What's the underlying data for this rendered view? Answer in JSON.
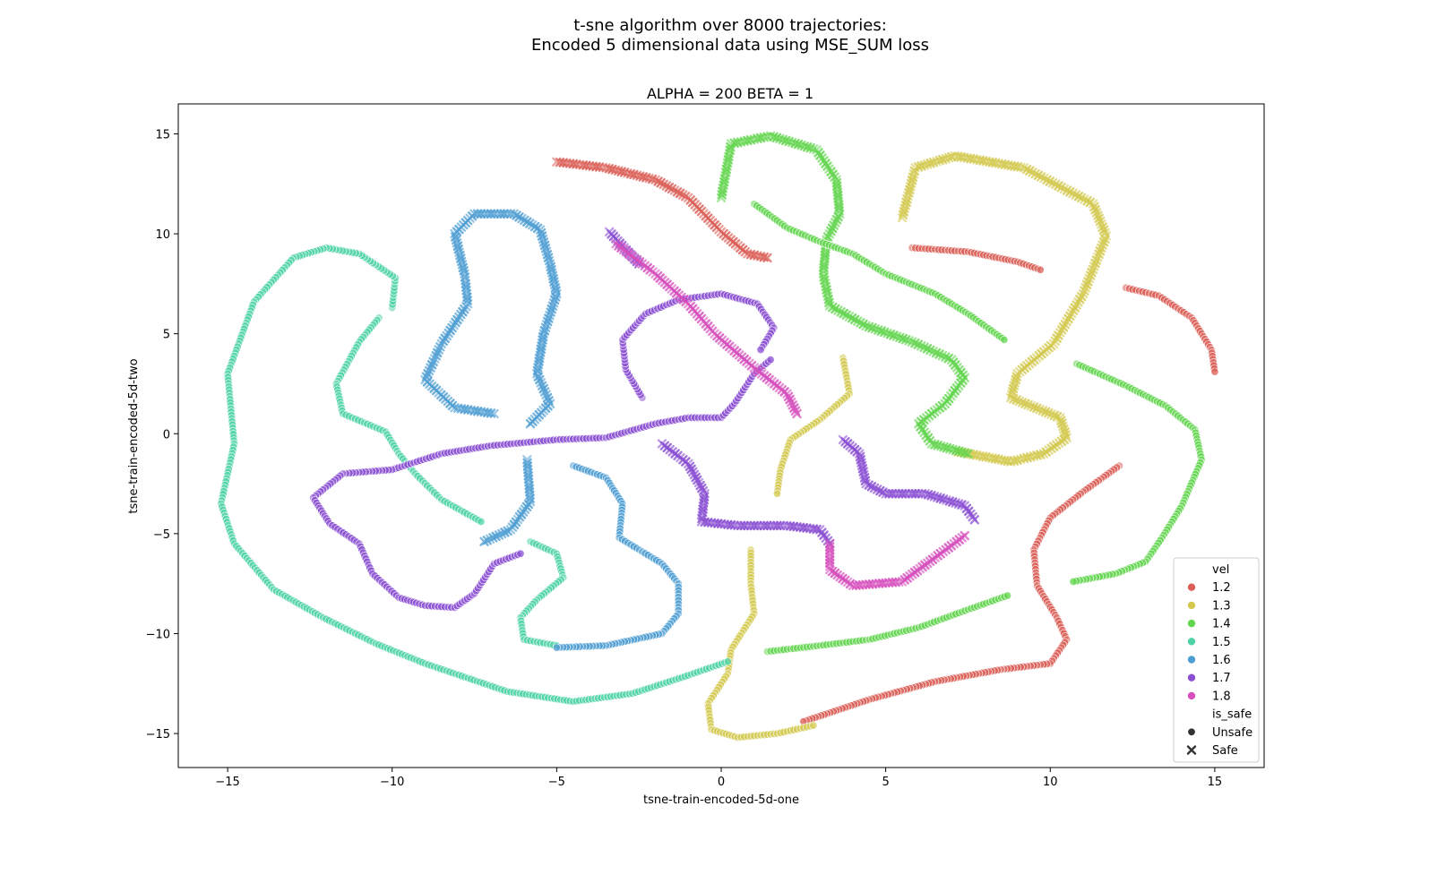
{
  "chart_data": {
    "type": "scatter",
    "suptitle_line1": "t-sne algorithm over 8000 trajectories:",
    "suptitle_line2": "Encoded 5 dimensional data using MSE_SUM loss",
    "title": "ALPHA = 200  BETA = 1",
    "xlabel": "tsne-train-encoded-5d-one",
    "ylabel": "tsne-train-encoded-5d-two",
    "xlim": [
      -16.5,
      16.5
    ],
    "ylim": [
      -16.7,
      16.5
    ],
    "xticks": [
      -15,
      -10,
      -5,
      0,
      5,
      10,
      15
    ],
    "yticks": [
      -15,
      -10,
      -5,
      0,
      5,
      10,
      15
    ],
    "grid": false,
    "legend_position": "bottom-right",
    "legend": {
      "hue_title": "vel",
      "hue_entries": [
        {
          "label": "1.2",
          "color": "#db5f57"
        },
        {
          "label": "1.3",
          "color": "#d3c94f"
        },
        {
          "label": "1.4",
          "color": "#63d54f"
        },
        {
          "label": "1.5",
          "color": "#4fd3a6"
        },
        {
          "label": "1.6",
          "color": "#4f9ed3"
        },
        {
          "label": "1.7",
          "color": "#8a4fd3"
        },
        {
          "label": "1.8",
          "color": "#d64fbd"
        }
      ],
      "style_title": "is_safe",
      "style_entries": [
        {
          "label": "Unsafe",
          "marker": "circle"
        },
        {
          "label": "Safe",
          "marker": "x"
        }
      ]
    },
    "series": [
      {
        "vel": "1.2",
        "color": "#db5f57",
        "marker": "x",
        "points": [
          [
            -5.0,
            13.6
          ],
          [
            -3.5,
            13.3
          ],
          [
            -2.0,
            12.7
          ],
          [
            -1.0,
            11.8
          ],
          [
            0.0,
            10.1
          ],
          [
            0.8,
            9.0
          ],
          [
            1.4,
            8.8
          ]
        ]
      },
      {
        "vel": "1.2",
        "color": "#db5f57",
        "marker": "circle",
        "points": [
          [
            5.8,
            9.3
          ],
          [
            7.5,
            9.1
          ],
          [
            9.0,
            8.6
          ],
          [
            9.7,
            8.2
          ]
        ]
      },
      {
        "vel": "1.2",
        "color": "#db5f57",
        "marker": "circle",
        "points": [
          [
            12.3,
            7.3
          ],
          [
            13.3,
            6.9
          ],
          [
            14.3,
            5.8
          ],
          [
            14.9,
            4.2
          ],
          [
            15.0,
            3.1
          ]
        ]
      },
      {
        "vel": "1.2",
        "color": "#db5f57",
        "marker": "circle",
        "points": [
          [
            12.1,
            -1.6
          ],
          [
            11.0,
            -2.9
          ],
          [
            10.0,
            -4.2
          ],
          [
            9.5,
            -5.8
          ],
          [
            9.6,
            -7.6
          ],
          [
            10.2,
            -9.2
          ],
          [
            10.5,
            -10.3
          ],
          [
            10.0,
            -11.5
          ],
          [
            8.5,
            -11.8
          ],
          [
            6.5,
            -12.4
          ],
          [
            4.5,
            -13.3
          ],
          [
            2.5,
            -14.4
          ]
        ]
      },
      {
        "vel": "1.3",
        "color": "#d3c94f",
        "marker": "x",
        "points": [
          [
            5.5,
            10.8
          ],
          [
            5.9,
            13.3
          ],
          [
            7.1,
            13.9
          ],
          [
            9.2,
            13.3
          ],
          [
            11.3,
            11.5
          ],
          [
            11.7,
            9.9
          ],
          [
            11.0,
            7.0
          ],
          [
            10.1,
            4.5
          ],
          [
            9.0,
            3.0
          ],
          [
            8.8,
            1.8
          ],
          [
            10.3,
            0.8
          ],
          [
            10.5,
            -0.2
          ],
          [
            9.8,
            -1.0
          ],
          [
            8.8,
            -1.4
          ],
          [
            7.2,
            -0.9
          ]
        ]
      },
      {
        "vel": "1.3",
        "color": "#d3c94f",
        "marker": "circle",
        "points": [
          [
            3.7,
            3.8
          ],
          [
            3.9,
            2.0
          ],
          [
            3.0,
            0.7
          ],
          [
            2.1,
            -0.3
          ],
          [
            1.8,
            -1.8
          ],
          [
            1.7,
            -3.0
          ]
        ]
      },
      {
        "vel": "1.3",
        "color": "#d3c94f",
        "marker": "circle",
        "points": [
          [
            0.9,
            -5.8
          ],
          [
            0.9,
            -7.5
          ],
          [
            1.0,
            -9.0
          ],
          [
            0.3,
            -10.8
          ],
          [
            0.2,
            -12.0
          ],
          [
            -0.4,
            -13.5
          ],
          [
            -0.3,
            -14.8
          ],
          [
            0.5,
            -15.2
          ],
          [
            1.7,
            -15.0
          ],
          [
            2.8,
            -14.6
          ]
        ]
      },
      {
        "vel": "1.4",
        "color": "#63d54f",
        "marker": "x",
        "points": [
          [
            0.0,
            11.8
          ],
          [
            0.3,
            14.5
          ],
          [
            1.5,
            14.9
          ],
          [
            2.9,
            14.2
          ],
          [
            3.5,
            12.7
          ],
          [
            3.6,
            11.0
          ],
          [
            3.2,
            9.7
          ],
          [
            3.1,
            8.0
          ],
          [
            3.3,
            6.4
          ],
          [
            4.4,
            5.4
          ],
          [
            5.8,
            4.6
          ],
          [
            7.0,
            3.7
          ],
          [
            7.4,
            2.8
          ],
          [
            6.8,
            1.5
          ],
          [
            6.0,
            0.5
          ],
          [
            6.4,
            -0.5
          ],
          [
            7.5,
            -1.0
          ]
        ]
      },
      {
        "vel": "1.4",
        "color": "#63d54f",
        "marker": "circle",
        "points": [
          [
            1.0,
            11.5
          ],
          [
            2.0,
            10.3
          ],
          [
            3.0,
            9.6
          ],
          [
            4.0,
            9.0
          ],
          [
            5.0,
            8.0
          ],
          [
            6.5,
            7.0
          ],
          [
            7.5,
            6.0
          ],
          [
            8.6,
            4.7
          ]
        ]
      },
      {
        "vel": "1.4",
        "color": "#63d54f",
        "marker": "circle",
        "points": [
          [
            10.8,
            3.5
          ],
          [
            12.3,
            2.4
          ],
          [
            13.5,
            1.4
          ],
          [
            14.4,
            0.2
          ],
          [
            14.6,
            -1.3
          ],
          [
            14.0,
            -3.6
          ],
          [
            13.4,
            -5.2
          ],
          [
            12.9,
            -6.4
          ],
          [
            12.0,
            -7.0
          ],
          [
            10.7,
            -7.4
          ]
        ]
      },
      {
        "vel": "1.4",
        "color": "#63d54f",
        "marker": "circle",
        "points": [
          [
            1.4,
            -10.9
          ],
          [
            3.0,
            -10.6
          ],
          [
            4.5,
            -10.3
          ],
          [
            6.0,
            -9.7
          ],
          [
            7.5,
            -8.8
          ],
          [
            8.7,
            -8.1
          ]
        ]
      },
      {
        "vel": "1.5",
        "color": "#4fd3a6",
        "marker": "circle",
        "points": [
          [
            -10.0,
            6.3
          ],
          [
            -9.9,
            7.8
          ],
          [
            -11.0,
            9.0
          ],
          [
            -12.0,
            9.3
          ],
          [
            -13.0,
            8.8
          ],
          [
            -14.2,
            6.6
          ],
          [
            -15.0,
            3.0
          ],
          [
            -14.8,
            -0.5
          ],
          [
            -15.2,
            -3.5
          ],
          [
            -14.8,
            -5.5
          ],
          [
            -13.6,
            -7.8
          ],
          [
            -12.1,
            -9.2
          ],
          [
            -10.5,
            -10.5
          ],
          [
            -9.0,
            -11.5
          ],
          [
            -6.5,
            -12.9
          ],
          [
            -4.5,
            -13.4
          ],
          [
            -2.7,
            -13.0
          ],
          [
            -1.2,
            -12.2
          ],
          [
            0.2,
            -11.4
          ]
        ]
      },
      {
        "vel": "1.5",
        "color": "#4fd3a6",
        "marker": "circle",
        "points": [
          [
            -10.4,
            5.8
          ],
          [
            -11.0,
            4.6
          ],
          [
            -11.7,
            2.5
          ],
          [
            -11.5,
            1.0
          ],
          [
            -10.2,
            0.1
          ],
          [
            -9.8,
            -1.0
          ],
          [
            -9.3,
            -2.0
          ],
          [
            -8.5,
            -3.3
          ],
          [
            -7.3,
            -4.4
          ]
        ]
      },
      {
        "vel": "1.5",
        "color": "#4fd3a6",
        "marker": "circle",
        "points": [
          [
            -5.8,
            -5.4
          ],
          [
            -5.0,
            -6.0
          ],
          [
            -4.8,
            -7.2
          ],
          [
            -5.6,
            -8.3
          ],
          [
            -6.1,
            -9.2
          ],
          [
            -6.0,
            -10.3
          ],
          [
            -5.0,
            -10.6
          ]
        ]
      },
      {
        "vel": "1.6",
        "color": "#4f9ed3",
        "marker": "x",
        "points": [
          [
            -6.9,
            1.0
          ],
          [
            -8.1,
            1.3
          ],
          [
            -9.0,
            2.7
          ],
          [
            -8.5,
            4.5
          ],
          [
            -7.7,
            6.5
          ],
          [
            -7.8,
            8.0
          ],
          [
            -8.1,
            10.0
          ],
          [
            -7.5,
            11.0
          ],
          [
            -6.3,
            11.0
          ],
          [
            -5.5,
            10.2
          ],
          [
            -5.2,
            8.5
          ],
          [
            -5.0,
            7.0
          ],
          [
            -5.4,
            5.0
          ],
          [
            -5.6,
            3.0
          ],
          [
            -5.2,
            1.5
          ],
          [
            -5.8,
            0.5
          ]
        ]
      },
      {
        "vel": "1.6",
        "color": "#4f9ed3",
        "marker": "x",
        "points": [
          [
            -5.9,
            -1.3
          ],
          [
            -5.8,
            -3.4
          ],
          [
            -6.4,
            -4.8
          ],
          [
            -7.2,
            -5.4
          ]
        ]
      },
      {
        "vel": "1.6",
        "color": "#4f9ed3",
        "marker": "circle",
        "points": [
          [
            -4.5,
            -1.6
          ],
          [
            -3.5,
            -2.2
          ],
          [
            -3.0,
            -3.5
          ],
          [
            -3.1,
            -5.2
          ],
          [
            -2.4,
            -5.9
          ],
          [
            -1.8,
            -6.5
          ],
          [
            -1.3,
            -7.5
          ],
          [
            -1.3,
            -9.0
          ],
          [
            -1.8,
            -10.0
          ],
          [
            -3.5,
            -10.6
          ],
          [
            -5.0,
            -10.7
          ]
        ]
      },
      {
        "vel": "1.7",
        "color": "#8a4fd3",
        "marker": "circle",
        "points": [
          [
            -10.0,
            -1.8
          ],
          [
            -8.5,
            -1.0
          ],
          [
            -7.0,
            -0.6
          ],
          [
            -5.0,
            -0.3
          ],
          [
            -3.5,
            -0.2
          ],
          [
            -2.0,
            0.5
          ],
          [
            -1.0,
            0.8
          ],
          [
            0.0,
            0.8
          ],
          [
            0.4,
            1.5
          ],
          [
            1.0,
            3.0
          ],
          [
            1.5,
            3.7
          ]
        ]
      },
      {
        "vel": "1.7",
        "color": "#8a4fd3",
        "marker": "circle",
        "points": [
          [
            -2.4,
            1.8
          ],
          [
            -2.9,
            3.2
          ],
          [
            -3.0,
            4.7
          ],
          [
            -2.3,
            6.0
          ],
          [
            -1.3,
            6.7
          ],
          [
            0.0,
            7.0
          ],
          [
            1.1,
            6.5
          ],
          [
            1.6,
            5.3
          ],
          [
            1.2,
            4.2
          ]
        ]
      },
      {
        "vel": "1.7",
        "color": "#8a4fd3",
        "marker": "circle",
        "points": [
          [
            -10.0,
            -1.8
          ],
          [
            -11.5,
            -2.0
          ],
          [
            -12.4,
            -3.2
          ],
          [
            -11.9,
            -4.5
          ],
          [
            -11.0,
            -5.5
          ],
          [
            -10.6,
            -7.0
          ],
          [
            -9.8,
            -8.2
          ],
          [
            -9.0,
            -8.6
          ],
          [
            -8.1,
            -8.7
          ],
          [
            -7.5,
            -8.0
          ],
          [
            -6.9,
            -6.5
          ],
          [
            -6.1,
            -6.0
          ]
        ]
      },
      {
        "vel": "1.7",
        "color": "#8a4fd3",
        "marker": "x",
        "points": [
          [
            -3.4,
            10.1
          ],
          [
            -2.5,
            8.5
          ]
        ]
      },
      {
        "vel": "1.7",
        "color": "#8a4fd3",
        "marker": "x",
        "points": [
          [
            -1.8,
            -0.5
          ],
          [
            -1.0,
            -1.5
          ],
          [
            -0.5,
            -3.0
          ],
          [
            -0.6,
            -4.4
          ],
          [
            0.5,
            -4.6
          ],
          [
            2.0,
            -4.6
          ],
          [
            3.0,
            -4.8
          ],
          [
            3.3,
            -5.5
          ]
        ]
      },
      {
        "vel": "1.7",
        "color": "#8a4fd3",
        "marker": "x",
        "points": [
          [
            3.7,
            -0.3
          ],
          [
            4.2,
            -1.0
          ],
          [
            4.4,
            -2.5
          ],
          [
            5.0,
            -3.0
          ],
          [
            6.2,
            -3.0
          ],
          [
            7.4,
            -3.6
          ],
          [
            7.7,
            -4.3
          ]
        ]
      },
      {
        "vel": "1.8",
        "color": "#d64fbd",
        "marker": "x",
        "points": [
          [
            -3.2,
            9.5
          ],
          [
            -2.0,
            8.0
          ],
          [
            -1.0,
            6.5
          ],
          [
            -0.2,
            5.0
          ],
          [
            1.0,
            3.3
          ],
          [
            2.0,
            2.0
          ],
          [
            2.3,
            1.0
          ]
        ]
      },
      {
        "vel": "1.8",
        "color": "#d64fbd",
        "marker": "x",
        "points": [
          [
            3.3,
            -5.5
          ],
          [
            3.3,
            -6.8
          ],
          [
            4.0,
            -7.6
          ],
          [
            5.5,
            -7.4
          ],
          [
            6.5,
            -6.2
          ],
          [
            7.4,
            -5.1
          ]
        ]
      }
    ]
  }
}
